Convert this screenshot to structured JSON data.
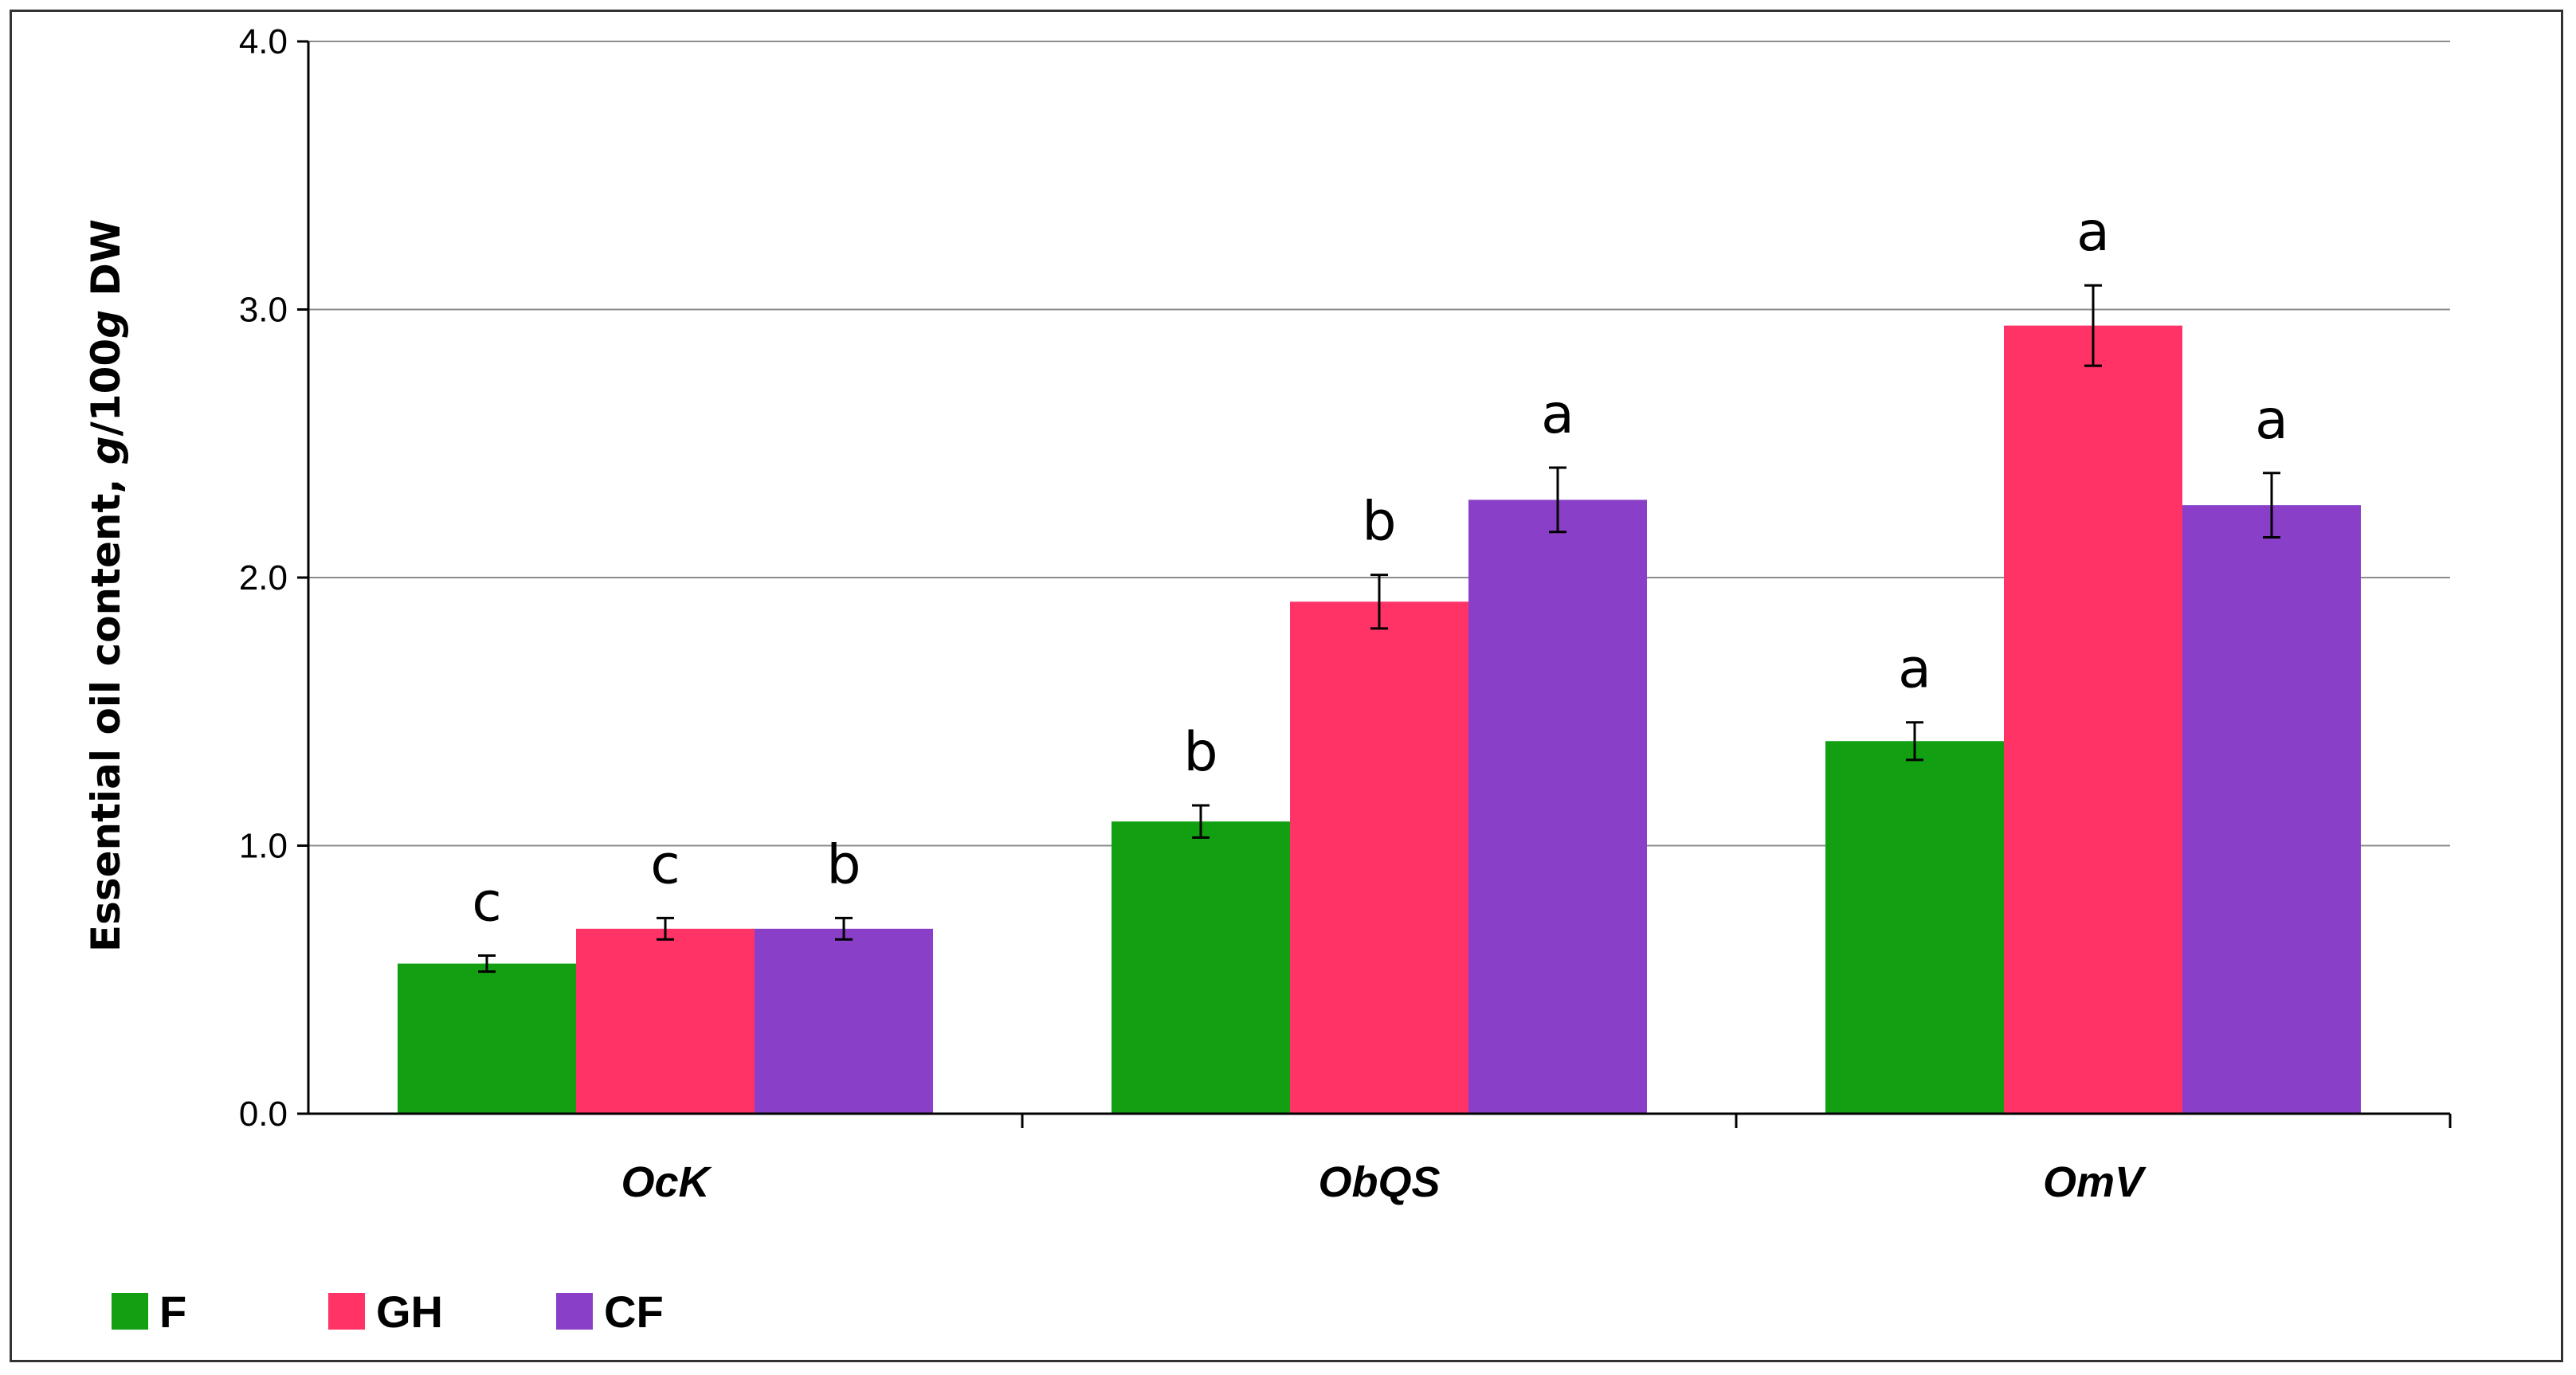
{
  "chart_data": {
    "type": "bar",
    "categories": [
      "OcK",
      "ObQS",
      "OmV"
    ],
    "ylabel_parts": [
      "Essential oil content, ",
      "g",
      "/100",
      "g",
      " DW"
    ],
    "xlabel": "",
    "ylim": [
      0,
      4
    ],
    "yticks": [
      "0.0",
      "1.0",
      "2.0",
      "3.0",
      "4.0"
    ],
    "grid": true,
    "legend_position": "bottom-left",
    "series": [
      {
        "name": "F",
        "color": "#12a012",
        "values": [
          0.56,
          1.09,
          1.39
        ],
        "errors": [
          0.03,
          0.06,
          0.07
        ],
        "letters": [
          "c",
          "b",
          "a"
        ]
      },
      {
        "name": "GH",
        "color": "#ff3366",
        "values": [
          0.69,
          1.91,
          2.94
        ],
        "errors": [
          0.04,
          0.1,
          0.15
        ],
        "letters": [
          "c",
          "b",
          "a"
        ]
      },
      {
        "name": "CF",
        "color": "#8a3fc8",
        "values": [
          0.69,
          2.29,
          2.27
        ],
        "errors": [
          0.04,
          0.12,
          0.12
        ],
        "letters": [
          "b",
          "a",
          "a"
        ]
      }
    ]
  }
}
